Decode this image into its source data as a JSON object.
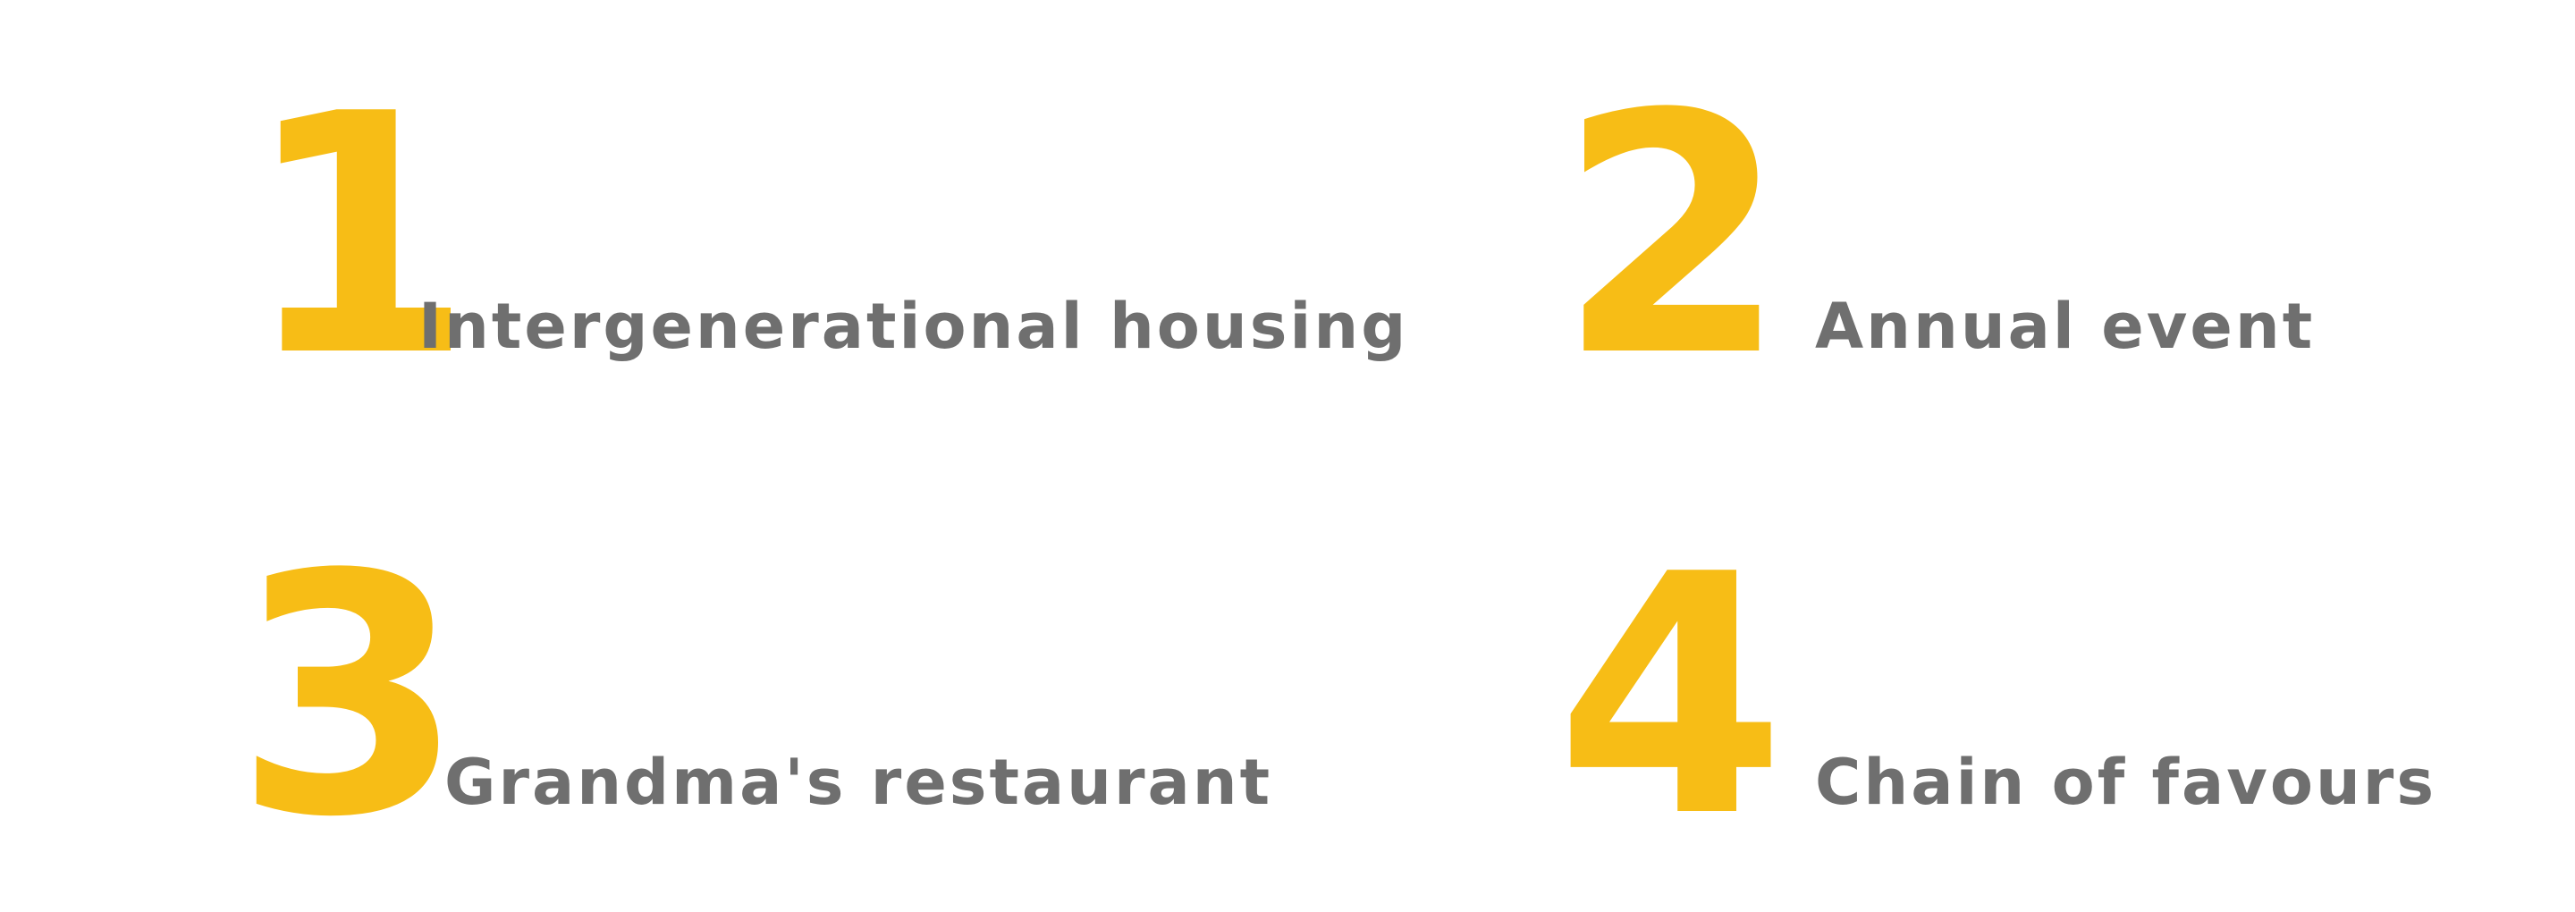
{
  "items": [
    {
      "number": "1",
      "label": "Intergenerational housing"
    },
    {
      "number": "2",
      "label": "Annual event"
    },
    {
      "number": "3",
      "label": "Grandma's restaurant"
    },
    {
      "number": "4",
      "label": "Chain of favours"
    }
  ],
  "colors": {
    "number": "#f7bd16",
    "label": "#6f6f6f",
    "background": "#ffffff"
  }
}
